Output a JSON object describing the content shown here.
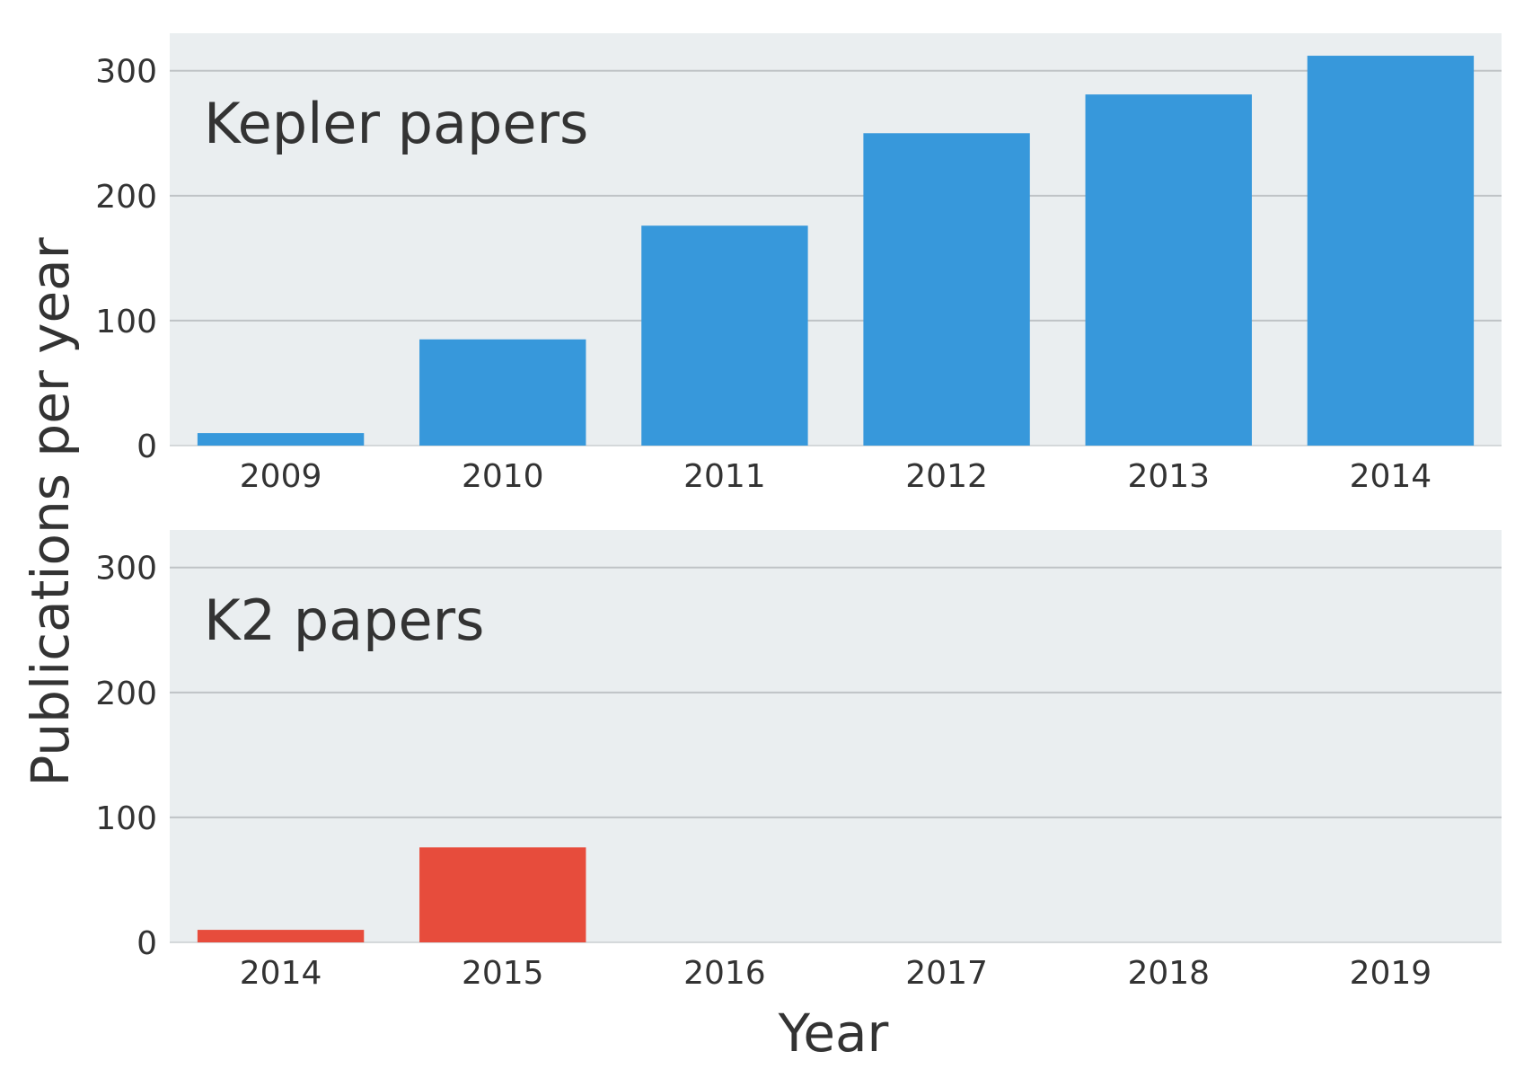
{
  "colors": {
    "panel_background": "#eaeef0",
    "grid": "#bfc3c6",
    "kepler_bar": "#3798db",
    "k2_bar": "#e74c3c",
    "text": "#333333"
  },
  "chart_data": [
    {
      "type": "bar",
      "title": "Kepler papers",
      "categories": [
        "2009",
        "2010",
        "2011",
        "2012",
        "2013",
        "2014"
      ],
      "values": [
        10,
        85,
        176,
        250,
        281,
        312
      ],
      "xlabel": "",
      "ylabel": "Publications per year",
      "ylim": [
        0,
        330
      ],
      "yticks": [
        "0",
        "100",
        "200",
        "300"
      ],
      "grid": "horizontal",
      "color": "#3798db"
    },
    {
      "type": "bar",
      "title": "K2 papers",
      "categories": [
        "2014",
        "2015",
        "2016",
        "2017",
        "2018",
        "2019"
      ],
      "values": [
        10,
        76,
        0,
        0,
        0,
        0
      ],
      "xlabel": "Year",
      "ylabel": "Publications per year",
      "ylim": [
        0,
        330
      ],
      "yticks": [
        "0",
        "100",
        "200",
        "300"
      ],
      "grid": "horizontal",
      "color": "#e74c3c"
    }
  ],
  "labels": {
    "ylabel": "Publications per year",
    "xlabel": "Year"
  }
}
